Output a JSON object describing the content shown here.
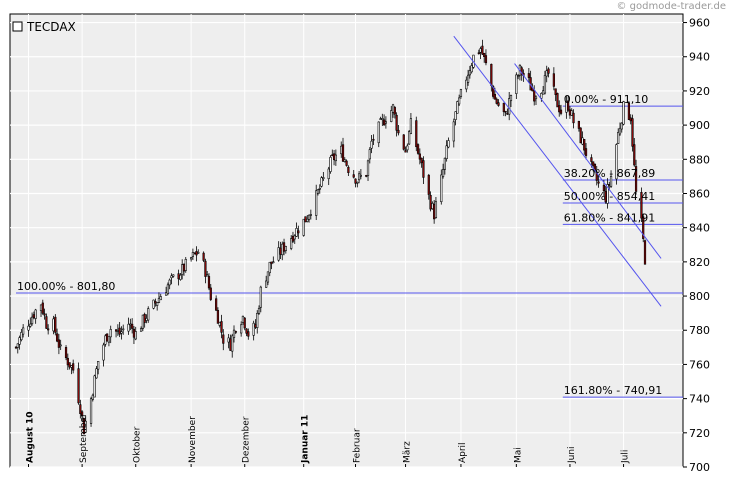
{
  "watermark": "© godmode-trader.de",
  "chart_data": {
    "type": "candlestick",
    "title": "TECDAX",
    "ylim": [
      700,
      965
    ],
    "y_ticks": [
      700,
      720,
      740,
      760,
      780,
      800,
      820,
      840,
      860,
      880,
      900,
      920,
      940,
      960
    ],
    "x_range": [
      "2010-07-26",
      "2011-07-13"
    ],
    "x_ticks": [
      {
        "label": "August 10",
        "date": "2010-08-02",
        "bold": true
      },
      {
        "label": "September",
        "date": "2010-09-01",
        "bold": false
      },
      {
        "label": "Oktober",
        "date": "2010-10-01",
        "bold": false
      },
      {
        "label": "November",
        "date": "2010-11-01",
        "bold": false
      },
      {
        "label": "Dezember",
        "date": "2010-12-01",
        "bold": false
      },
      {
        "label": "Januar 11",
        "date": "2011-01-03",
        "bold": true
      },
      {
        "label": "Februar",
        "date": "2011-02-01",
        "bold": false
      },
      {
        "label": "März",
        "date": "2011-03-01",
        "bold": false
      },
      {
        "label": "April",
        "date": "2011-04-01",
        "bold": false
      },
      {
        "label": "Mai",
        "date": "2011-05-02",
        "bold": false
      },
      {
        "label": "Juni",
        "date": "2011-06-01",
        "bold": false
      },
      {
        "label": "Juli",
        "date": "2011-07-01",
        "bold": false
      }
    ],
    "grid": true,
    "path": [
      [
        "2010-07-26",
        770
      ],
      [
        "2010-07-30",
        780
      ],
      [
        "2010-08-05",
        790
      ],
      [
        "2010-08-09",
        796
      ],
      [
        "2010-08-12",
        784
      ],
      [
        "2010-08-16",
        783
      ],
      [
        "2010-08-20",
        768
      ],
      [
        "2010-08-24",
        762
      ],
      [
        "2010-08-27",
        757
      ],
      [
        "2010-08-31",
        735
      ],
      [
        "2010-09-02",
        722
      ],
      [
        "2010-09-06",
        740
      ],
      [
        "2010-09-10",
        762
      ],
      [
        "2010-09-14",
        775
      ],
      [
        "2010-09-17",
        781
      ],
      [
        "2010-09-22",
        778
      ],
      [
        "2010-09-27",
        784
      ],
      [
        "2010-10-01",
        778
      ],
      [
        "2010-10-06",
        787
      ],
      [
        "2010-10-12",
        796
      ],
      [
        "2010-10-18",
        805
      ],
      [
        "2010-10-22",
        810
      ],
      [
        "2010-10-27",
        815
      ],
      [
        "2010-11-01",
        822
      ],
      [
        "2010-11-05",
        826
      ],
      [
        "2010-11-09",
        815
      ],
      [
        "2010-11-12",
        800
      ],
      [
        "2010-11-16",
        788
      ],
      [
        "2010-11-19",
        775
      ],
      [
        "2010-11-23",
        772
      ],
      [
        "2010-11-26",
        783
      ],
      [
        "2010-11-30",
        788
      ],
      [
        "2010-12-03",
        778
      ],
      [
        "2010-12-07",
        782
      ],
      [
        "2010-12-10",
        803
      ],
      [
        "2010-12-15",
        818
      ],
      [
        "2010-12-21",
        826
      ],
      [
        "2010-12-28",
        836
      ],
      [
        "2011-01-04",
        845
      ],
      [
        "2011-01-10",
        858
      ],
      [
        "2011-01-14",
        868
      ],
      [
        "2011-01-19",
        880
      ],
      [
        "2011-01-24",
        885
      ],
      [
        "2011-01-28",
        875
      ],
      [
        "2011-02-02",
        868
      ],
      [
        "2011-02-07",
        872
      ],
      [
        "2011-02-10",
        890
      ],
      [
        "2011-02-15",
        900
      ],
      [
        "2011-02-18",
        905
      ],
      [
        "2011-02-22",
        910
      ],
      [
        "2011-02-25",
        895
      ],
      [
        "2011-03-01",
        885
      ],
      [
        "2011-03-04",
        900
      ],
      [
        "2011-03-09",
        880
      ],
      [
        "2011-03-14",
        858
      ],
      [
        "2011-03-17",
        848
      ],
      [
        "2011-03-21",
        868
      ],
      [
        "2011-03-25",
        890
      ],
      [
        "2011-03-30",
        910
      ],
      [
        "2011-04-04",
        928
      ],
      [
        "2011-04-08",
        940
      ],
      [
        "2011-04-12",
        945
      ],
      [
        "2011-04-15",
        935
      ],
      [
        "2011-04-20",
        915
      ],
      [
        "2011-04-26",
        905
      ],
      [
        "2011-04-29",
        918
      ],
      [
        "2011-05-04",
        932
      ],
      [
        "2011-05-09",
        925
      ],
      [
        "2011-05-12",
        918
      ],
      [
        "2011-05-16",
        922
      ],
      [
        "2011-05-20",
        930
      ],
      [
        "2011-05-24",
        915
      ],
      [
        "2011-05-27",
        908
      ],
      [
        "2011-05-31",
        912
      ],
      [
        "2011-06-03",
        902
      ],
      [
        "2011-06-08",
        890
      ],
      [
        "2011-06-13",
        875
      ],
      [
        "2011-06-17",
        865
      ],
      [
        "2011-06-21",
        858
      ],
      [
        "2011-06-24",
        870
      ],
      [
        "2011-06-28",
        895
      ],
      [
        "2011-07-01",
        910
      ],
      [
        "2011-07-05",
        905
      ],
      [
        "2011-07-07",
        875
      ],
      [
        "2011-07-08",
        860
      ],
      [
        "2011-07-11",
        842
      ],
      [
        "2011-07-13",
        822
      ]
    ],
    "fib_levels": [
      {
        "label": "0.00% - 911,10",
        "value": 911.1,
        "start": "2011-05-28"
      },
      {
        "label": "38.20% - 867,89",
        "value": 867.89,
        "start": "2011-05-28"
      },
      {
        "label": "50.00% - 854,41",
        "value": 854.41,
        "start": "2011-05-28"
      },
      {
        "label": "61.80% - 841,91",
        "value": 841.91,
        "start": "2011-05-28"
      },
      {
        "label": "100.00% - 801,80",
        "value": 801.8,
        "start": "2010-07-26"
      },
      {
        "label": "161.80% - 740,91",
        "value": 740.91,
        "start": "2011-05-28"
      }
    ],
    "trendlines": [
      {
        "from": [
          "2011-03-28",
          952
        ],
        "to": [
          "2011-07-22",
          794
        ]
      },
      {
        "from": [
          "2011-05-01",
          936
        ],
        "to": [
          "2011-07-22",
          822
        ]
      }
    ],
    "colors": {
      "up": "#ffffff",
      "down": "#8b0a0a",
      "wick": "#000000",
      "fib": "#5555ee",
      "plot_bg": "#eeeeee"
    }
  }
}
